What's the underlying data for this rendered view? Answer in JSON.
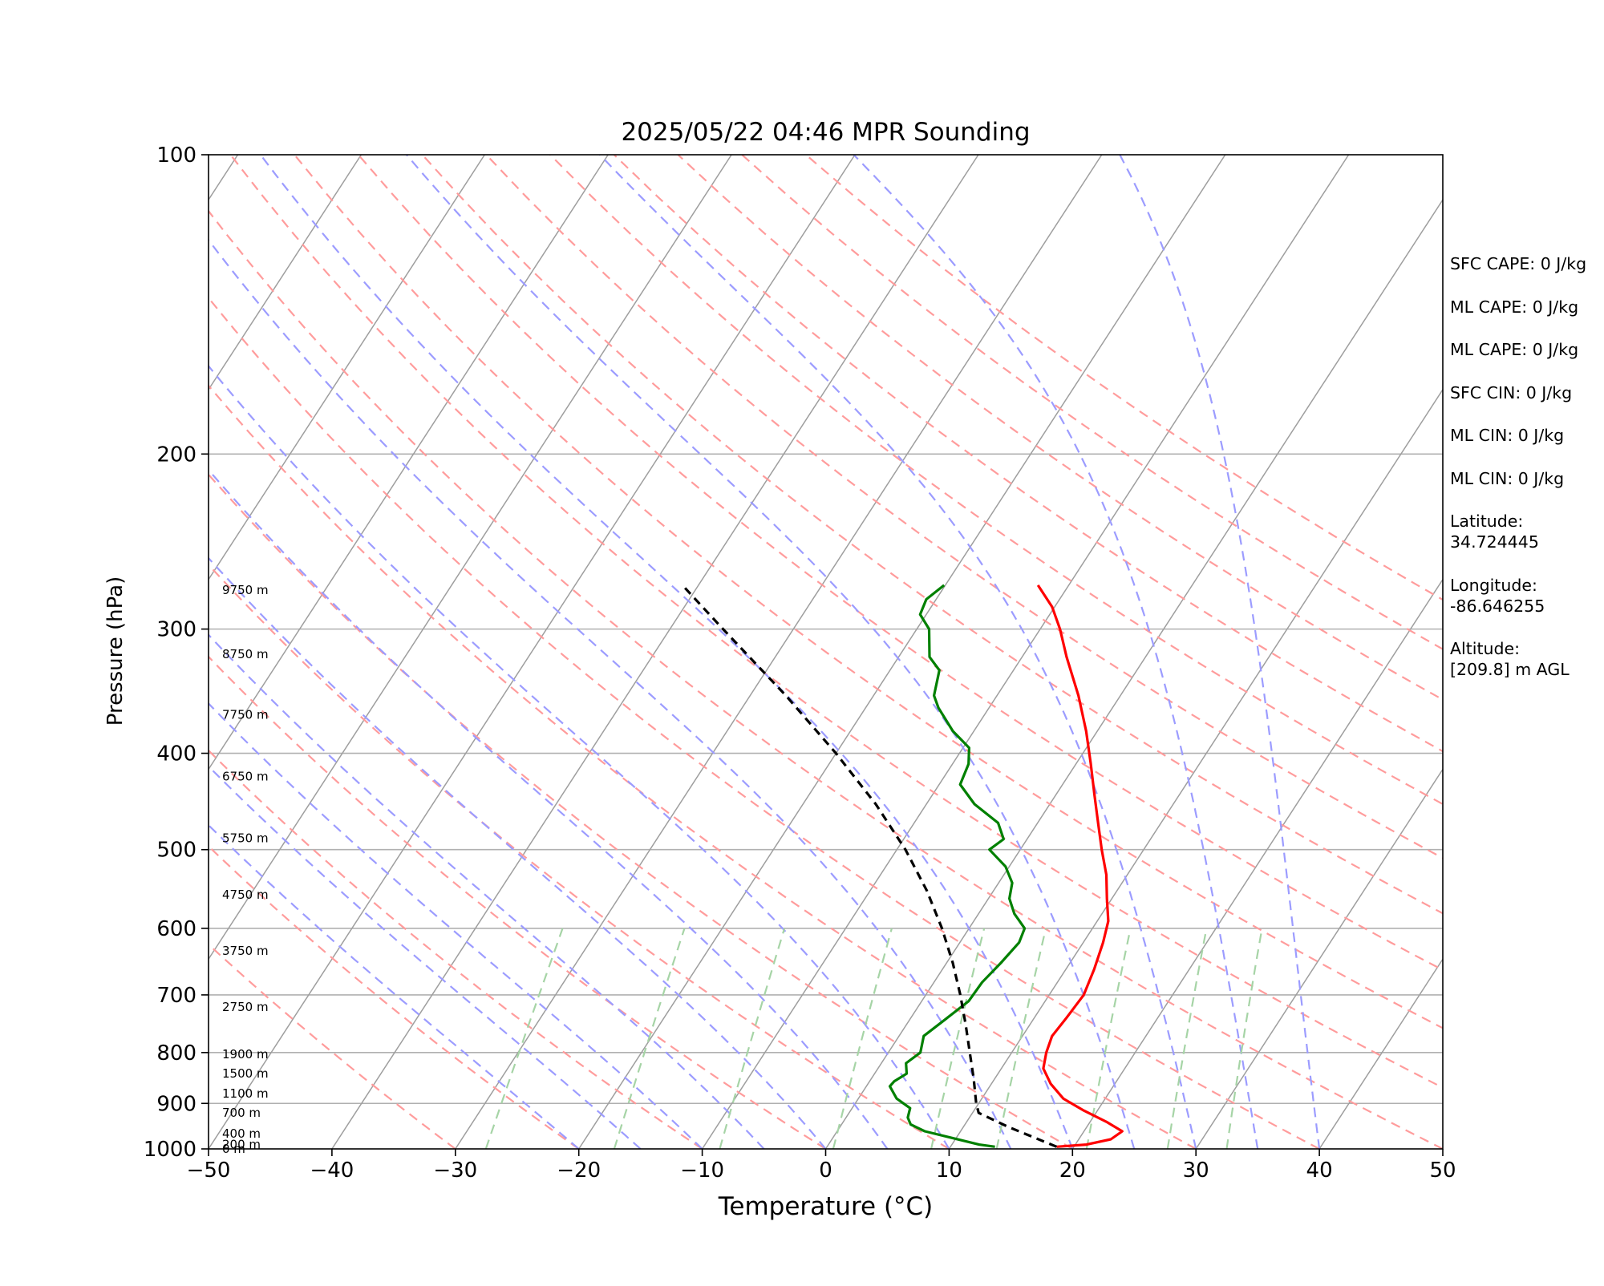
{
  "chart_data": {
    "type": "skew-t log-p sounding",
    "title": "2025/05/22 04:46 MPR Sounding",
    "xlabel": "Temperature (°C)",
    "ylabel": "Pressure (hPa)",
    "xlim": [
      -50,
      50
    ],
    "ylim_pressure": [
      1000,
      100
    ],
    "x_ticks": [
      "−50",
      "−40",
      "−30",
      "−20",
      "−10",
      "0",
      "10",
      "20",
      "30",
      "40",
      "50"
    ],
    "x_tick_values": [
      -50,
      -40,
      -30,
      -20,
      -10,
      0,
      10,
      20,
      30,
      40,
      50
    ],
    "y_ticks": [
      "100",
      "200",
      "300",
      "400",
      "500",
      "600",
      "700",
      "800",
      "900",
      "1000"
    ],
    "y_tick_values": [
      100,
      200,
      300,
      400,
      500,
      600,
      700,
      800,
      900,
      1000
    ],
    "grid": "horizontal isobars",
    "colors": {
      "temperature": "#ff0000",
      "dewpoint": "#008000",
      "parcel": "#000000",
      "dry_adiabats": "#ff9c9c",
      "moist_adiabats": "#9c9cff",
      "mixing_ratio": "#a6d4a6",
      "isotherms": "#9e9e9e",
      "isobars": "#b0b0b0"
    },
    "series": [
      {
        "name": "temperature",
        "line": "solid",
        "points": [
          {
            "p": 995,
            "t": 18.6
          },
          {
            "p": 990,
            "t": 20.9
          },
          {
            "p": 978,
            "t": 22.6
          },
          {
            "p": 960,
            "t": 23.1
          },
          {
            "p": 940,
            "t": 21.4
          },
          {
            "p": 915,
            "t": 18.9
          },
          {
            "p": 890,
            "t": 16.6
          },
          {
            "p": 860,
            "t": 14.8
          },
          {
            "p": 830,
            "t": 13.4
          },
          {
            "p": 800,
            "t": 12.8
          },
          {
            "p": 770,
            "t": 12.4
          },
          {
            "p": 740,
            "t": 12.6
          },
          {
            "p": 700,
            "t": 12.8
          },
          {
            "p": 660,
            "t": 12.3
          },
          {
            "p": 620,
            "t": 11.6
          },
          {
            "p": 590,
            "t": 10.9
          },
          {
            "p": 560,
            "t": 9.6
          },
          {
            "p": 530,
            "t": 8.3
          },
          {
            "p": 500,
            "t": 6.6
          },
          {
            "p": 470,
            "t": 4.9
          },
          {
            "p": 440,
            "t": 3.1
          },
          {
            "p": 410,
            "t": 1.2
          },
          {
            "p": 380,
            "t": -0.9
          },
          {
            "p": 350,
            "t": -3.4
          },
          {
            "p": 320,
            "t": -6.4
          },
          {
            "p": 300,
            "t": -8.4
          },
          {
            "p": 285,
            "t": -10.2
          },
          {
            "p": 271,
            "t": -12.5
          }
        ]
      },
      {
        "name": "dewpoint",
        "line": "solid",
        "points": [
          {
            "p": 995,
            "t": 13.6
          },
          {
            "p": 990,
            "t": 12.2
          },
          {
            "p": 975,
            "t": 9.7
          },
          {
            "p": 960,
            "t": 7.1
          },
          {
            "p": 945,
            "t": 5.6
          },
          {
            "p": 930,
            "t": 5.0
          },
          {
            "p": 910,
            "t": 4.7
          },
          {
            "p": 890,
            "t": 3.1
          },
          {
            "p": 865,
            "t": 1.9
          },
          {
            "p": 855,
            "t": 2.0
          },
          {
            "p": 840,
            "t": 2.6
          },
          {
            "p": 820,
            "t": 2.0
          },
          {
            "p": 800,
            "t": 2.6
          },
          {
            "p": 770,
            "t": 2.0
          },
          {
            "p": 740,
            "t": 2.9
          },
          {
            "p": 710,
            "t": 3.8
          },
          {
            "p": 680,
            "t": 3.9
          },
          {
            "p": 650,
            "t": 4.4
          },
          {
            "p": 620,
            "t": 4.8
          },
          {
            "p": 600,
            "t": 4.5
          },
          {
            "p": 580,
            "t": 2.9
          },
          {
            "p": 560,
            "t": 1.7
          },
          {
            "p": 540,
            "t": 1.1
          },
          {
            "p": 520,
            "t": -0.3
          },
          {
            "p": 500,
            "t": -2.5
          },
          {
            "p": 488,
            "t": -1.9
          },
          {
            "p": 470,
            "t": -3.2
          },
          {
            "p": 450,
            "t": -6.1
          },
          {
            "p": 430,
            "t": -8.3
          },
          {
            "p": 410,
            "t": -8.7
          },
          {
            "p": 395,
            "t": -9.5
          },
          {
            "p": 380,
            "t": -11.7
          },
          {
            "p": 360,
            "t": -14.1
          },
          {
            "p": 350,
            "t": -15.1
          },
          {
            "p": 330,
            "t": -16.0
          },
          {
            "p": 320,
            "t": -17.5
          },
          {
            "p": 300,
            "t": -19.0
          },
          {
            "p": 290,
            "t": -20.5
          },
          {
            "p": 280,
            "t": -20.8
          },
          {
            "p": 271,
            "t": -20.1
          }
        ]
      },
      {
        "name": "parcel",
        "line": "dashed",
        "points": [
          {
            "p": 995,
            "t": 18.6
          },
          {
            "p": 950,
            "t": 13.6
          },
          {
            "p": 920,
            "t": 10.5
          },
          {
            "p": 900,
            "t": 9.8
          },
          {
            "p": 850,
            "t": 8.3
          },
          {
            "p": 800,
            "t": 6.6
          },
          {
            "p": 750,
            "t": 4.8
          },
          {
            "p": 700,
            "t": 2.8
          },
          {
            "p": 650,
            "t": 0.5
          },
          {
            "p": 600,
            "t": -2.2
          },
          {
            "p": 550,
            "t": -5.4
          },
          {
            "p": 500,
            "t": -9.3
          },
          {
            "p": 450,
            "t": -14.1
          },
          {
            "p": 400,
            "t": -20.0
          },
          {
            "p": 350,
            "t": -27.1
          },
          {
            "p": 300,
            "t": -35.7
          },
          {
            "p": 271,
            "t": -41.3
          }
        ]
      }
    ],
    "height_labels": [
      {
        "p": 1000,
        "text": "0 m"
      },
      {
        "p": 990,
        "text": "200 m"
      },
      {
        "p": 965,
        "text": "400 m"
      },
      {
        "p": 920,
        "text": "700 m"
      },
      {
        "p": 880,
        "text": "1100 m"
      },
      {
        "p": 840,
        "text": "1500 m"
      },
      {
        "p": 803,
        "text": "1900 m"
      },
      {
        "p": 720,
        "text": "2750 m"
      },
      {
        "p": 632,
        "text": "3750 m"
      },
      {
        "p": 555,
        "text": "4750 m"
      },
      {
        "p": 487,
        "text": "5750 m"
      },
      {
        "p": 422,
        "text": "6750 m"
      },
      {
        "p": 366,
        "text": "7750 m"
      },
      {
        "p": 318,
        "text": "8750 m"
      },
      {
        "p": 274,
        "text": "9750 m"
      }
    ]
  },
  "side_panel": {
    "sfc_cape": "SFC CAPE: 0 J/kg",
    "ml_cape": "ML CAPE: 0 J/kg",
    "ml_cape_2": "ML CAPE: 0 J/kg",
    "sfc_cin": "SFC CIN: 0 J/kg",
    "ml_cin": "ML CIN: 0 J/kg",
    "ml_cin_2": "ML CIN: 0 J/kg",
    "latitude_label": "Latitude:",
    "latitude_value": "34.724445",
    "longitude_label": "Longitude:",
    "longitude_value": "-86.646255",
    "altitude_label": "Altitude:",
    "altitude_value": "[209.8] m AGL"
  }
}
